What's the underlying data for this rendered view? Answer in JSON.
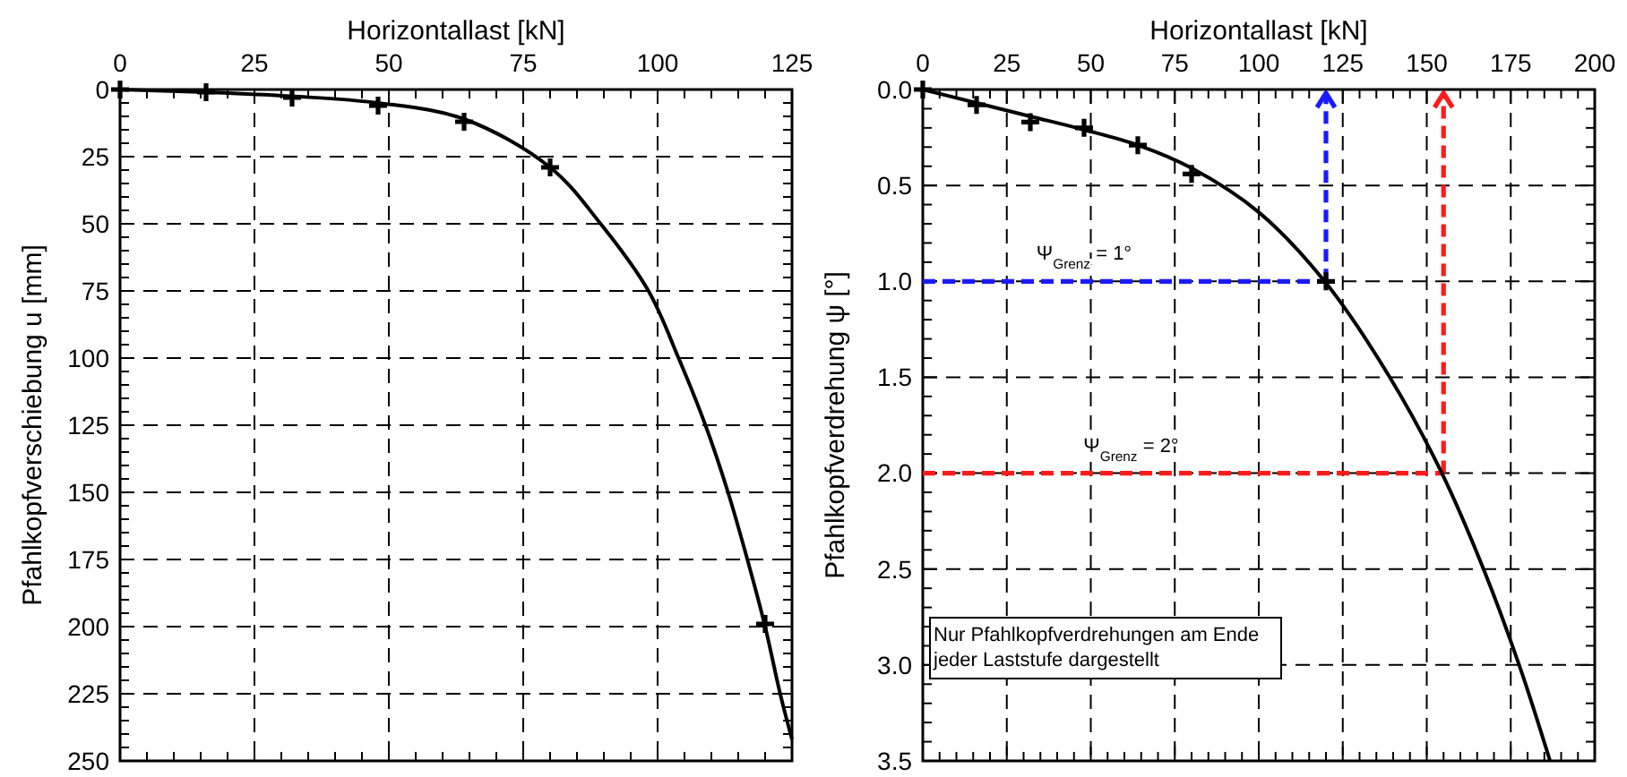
{
  "chart_data": [
    {
      "type": "line",
      "xlabel": "Horizontallast [kN]",
      "ylabel": "Pfahlkopfverschiebung u [mm]",
      "xlim": [
        0,
        125
      ],
      "ylim": [
        250,
        0
      ],
      "grid": true,
      "xticks": [
        0,
        {
          "value": 5,
          "label": null
        },
        {
          "value": 10,
          "label": null
        },
        {
          "value": 15,
          "label": null
        },
        {
          "value": 20,
          "label": null
        },
        25,
        {
          "value": 30,
          "label": null
        },
        {
          "value": 35,
          "label": null
        },
        {
          "value": 40,
          "label": null
        },
        {
          "value": 45,
          "label": null
        },
        50,
        {
          "value": 55,
          "label": null
        },
        {
          "value": 60,
          "label": null
        },
        {
          "value": 65,
          "label": null
        },
        {
          "value": 70,
          "label": null
        },
        75,
        {
          "value": 80,
          "label": null
        },
        {
          "value": 85,
          "label": null
        },
        {
          "value": 90,
          "label": null
        },
        {
          "value": 95,
          "label": null
        },
        100,
        {
          "value": 105,
          "label": null
        },
        {
          "value": 110,
          "label": null
        },
        {
          "value": 115,
          "label": null
        },
        {
          "value": 120,
          "label": null
        },
        125
      ],
      "yticks": [
        0,
        {
          "value": 5,
          "label": null
        },
        {
          "value": 10,
          "label": null
        },
        {
          "value": 15,
          "label": null
        },
        {
          "value": 20,
          "label": null
        },
        25,
        {
          "value": 30,
          "label": null
        },
        {
          "value": 35,
          "label": null
        },
        {
          "value": 40,
          "label": null
        },
        {
          "value": 45,
          "label": null
        },
        50,
        {
          "value": 55,
          "label": null
        },
        {
          "value": 60,
          "label": null
        },
        {
          "value": 65,
          "label": null
        },
        {
          "value": 70,
          "label": null
        },
        75,
        {
          "value": 80,
          "label": null
        },
        {
          "value": 85,
          "label": null
        },
        {
          "value": 90,
          "label": null
        },
        {
          "value": 95,
          "label": null
        },
        100,
        {
          "value": 105,
          "label": null
        },
        {
          "value": 110,
          "label": null
        },
        {
          "value": 115,
          "label": null
        },
        {
          "value": 120,
          "label": null
        },
        125,
        {
          "value": 130,
          "label": null
        },
        {
          "value": 135,
          "label": null
        },
        {
          "value": 140,
          "label": null
        },
        {
          "value": 145,
          "label": null
        },
        150,
        {
          "value": 155,
          "label": null
        },
        {
          "value": 160,
          "label": null
        },
        {
          "value": 165,
          "label": null
        },
        {
          "value": 170,
          "label": null
        },
        175,
        {
          "value": 180,
          "label": null
        },
        {
          "value": 185,
          "label": null
        },
        {
          "value": 190,
          "label": null
        },
        {
          "value": 195,
          "label": null
        },
        200,
        {
          "value": 205,
          "label": null
        },
        {
          "value": 210,
          "label": null
        },
        {
          "value": 215,
          "label": null
        },
        {
          "value": 220,
          "label": null
        },
        225,
        {
          "value": 230,
          "label": null
        },
        {
          "value": 235,
          "label": null
        },
        {
          "value": 240,
          "label": null
        },
        {
          "value": 245,
          "label": null
        },
        250
      ],
      "series": [
        {
          "type": "line",
          "color": "#000000",
          "marker": "none",
          "line_style": "solid",
          "x": [
            0,
            16,
            32,
            48,
            64,
            80,
            89.4,
            98.3,
            103.9,
            108.9,
            113.1,
            116.7,
            120,
            122.8,
            125
          ],
          "values": [
            0,
            1,
            2.5,
            5,
            11,
            29,
            50,
            75,
            100,
            125,
            150,
            175,
            200,
            225,
            242
          ]
        },
        {
          "type": "scatter",
          "color": "#000000",
          "marker": "cross",
          "x": [
            0,
            16,
            32,
            48,
            64,
            80,
            120
          ],
          "values": [
            0,
            1,
            3,
            6,
            12,
            29,
            199
          ]
        }
      ]
    },
    {
      "type": "line",
      "xlabel": "Horizontallast [kN]",
      "ylabel": "Pfahlkopfverdrehung ψ [°]",
      "xlim": [
        0,
        200
      ],
      "ylim": [
        3.5,
        0
      ],
      "grid": true,
      "xticks": [
        0,
        {
          "value": 5,
          "label": null
        },
        {
          "value": 10,
          "label": null
        },
        {
          "value": 15,
          "label": null
        },
        {
          "value": 20,
          "label": null
        },
        25,
        {
          "value": 30,
          "label": null
        },
        {
          "value": 35,
          "label": null
        },
        {
          "value": 40,
          "label": null
        },
        {
          "value": 45,
          "label": null
        },
        50,
        {
          "value": 55,
          "label": null
        },
        {
          "value": 60,
          "label": null
        },
        {
          "value": 65,
          "label": null
        },
        {
          "value": 70,
          "label": null
        },
        75,
        {
          "value": 80,
          "label": null
        },
        {
          "value": 85,
          "label": null
        },
        {
          "value": 90,
          "label": null
        },
        {
          "value": 95,
          "label": null
        },
        100,
        {
          "value": 105,
          "label": null
        },
        {
          "value": 110,
          "label": null
        },
        {
          "value": 115,
          "label": null
        },
        {
          "value": 120,
          "label": null
        },
        125,
        {
          "value": 130,
          "label": null
        },
        {
          "value": 135,
          "label": null
        },
        {
          "value": 140,
          "label": null
        },
        {
          "value": 145,
          "label": null
        },
        150,
        {
          "value": 155,
          "label": null
        },
        {
          "value": 160,
          "label": null
        },
        {
          "value": 165,
          "label": null
        },
        {
          "value": 170,
          "label": null
        },
        175,
        {
          "value": 180,
          "label": null
        },
        {
          "value": 185,
          "label": null
        },
        {
          "value": 190,
          "label": null
        },
        {
          "value": 195,
          "label": null
        },
        200
      ],
      "yticks": [
        {
          "value": 0,
          "label": "0.0"
        },
        {
          "value": 0.1,
          "label": null
        },
        {
          "value": 0.2,
          "label": null
        },
        {
          "value": 0.3,
          "label": null
        },
        {
          "value": 0.4,
          "label": null
        },
        0.5,
        {
          "value": 0.6,
          "label": null
        },
        {
          "value": 0.7,
          "label": null
        },
        {
          "value": 0.8,
          "label": null
        },
        {
          "value": 0.9,
          "label": null
        },
        {
          "value": 1,
          "label": "1.0"
        },
        {
          "value": 1.1,
          "label": null
        },
        {
          "value": 1.2,
          "label": null
        },
        {
          "value": 1.3,
          "label": null
        },
        {
          "value": 1.4,
          "label": null
        },
        1.5,
        {
          "value": 1.6,
          "label": null
        },
        {
          "value": 1.7,
          "label": null
        },
        {
          "value": 1.8,
          "label": null
        },
        {
          "value": 1.9,
          "label": null
        },
        {
          "value": 2,
          "label": "2.0"
        },
        {
          "value": 2.1,
          "label": null
        },
        {
          "value": 2.2,
          "label": null
        },
        {
          "value": 2.3,
          "label": null
        },
        {
          "value": 2.4,
          "label": null
        },
        2.5,
        {
          "value": 2.6,
          "label": null
        },
        {
          "value": 2.7,
          "label": null
        },
        {
          "value": 2.8,
          "label": null
        },
        {
          "value": 2.9,
          "label": null
        },
        {
          "value": 3,
          "label": "3.0"
        },
        {
          "value": 3.1,
          "label": null
        },
        {
          "value": 3.2,
          "label": null
        },
        {
          "value": 3.3,
          "label": null
        },
        {
          "value": 3.4,
          "label": null
        },
        3.5
      ],
      "annotations": [
        "Nur Pfahlkopfverdrehungen am Ende jeder Laststufe dargestellt"
      ],
      "ref_lines": [
        {
          "axis": "y",
          "value": 1,
          "label": "Ψ$_{Grenz}$ = 1°",
          "color": "#1a1aff",
          "line_style": "dashed"
        },
        {
          "axis": "x",
          "value": 120,
          "label": null,
          "color": "#1a1aff",
          "line_style": "dashed"
        },
        {
          "axis": "y",
          "value": 2,
          "label": "Ψ$_{Grenz}$ = 2°",
          "color": "#ff1a1a",
          "line_style": "dashed"
        },
        {
          "axis": "x",
          "value": 155,
          "label": null,
          "color": "#ff1a1a",
          "line_style": "dashed"
        }
      ],
      "series": [
        {
          "type": "line",
          "color": "#000000",
          "marker": "none",
          "line_style": "solid",
          "x": [
            0,
            16,
            32,
            48,
            64,
            80,
            100,
            119.6,
            139,
            154.5,
            166.9,
            177.5,
            186.7
          ],
          "values": [
            0,
            0.07,
            0.14,
            0.21,
            0.29,
            0.41,
            0.64,
            1,
            1.5,
            2,
            2.5,
            3,
            3.5
          ]
        },
        {
          "type": "scatter",
          "color": "#000000",
          "marker": "cross",
          "x": [
            0,
            16,
            32,
            48,
            64,
            80,
            120
          ],
          "values": [
            0,
            0.08,
            0.17,
            0.2,
            0.29,
            0.44,
            1
          ]
        }
      ]
    }
  ]
}
